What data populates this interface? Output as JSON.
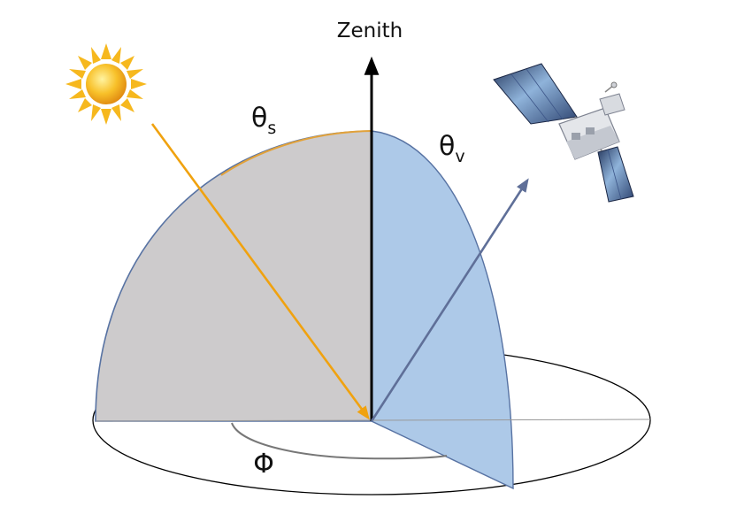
{
  "labels": {
    "zenith": "Zenith",
    "theta": "θ",
    "solar_subscript": "s",
    "view_subscript": "v",
    "azimuth": "Φ"
  },
  "colors": {
    "solar_plane_fill": "#cdcbcc",
    "view_plane_fill": "#adc9e8",
    "plane_edge": "#5873a3",
    "solar_arc": "#e2a23a",
    "sun_ray": "#f0a20f",
    "view_ray": "#5f6f98",
    "zenith_axis": "#000000",
    "horizon_ellipse": "#000000",
    "azimuth_arc": "#777777"
  },
  "icons": {
    "sun": "sun-icon",
    "satellite": "satellite-icon"
  }
}
